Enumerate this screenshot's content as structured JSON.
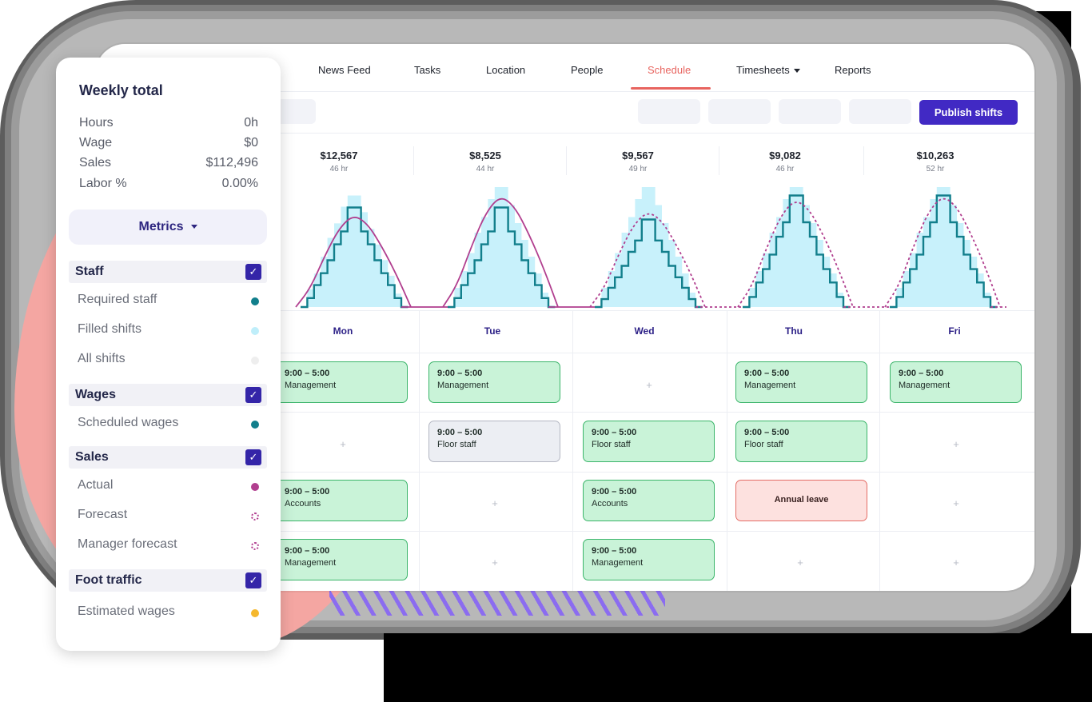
{
  "nav": {
    "items": [
      "News Feed",
      "Tasks",
      "Location",
      "People",
      "Schedule",
      "Timesheets",
      "Reports"
    ],
    "active": "Schedule"
  },
  "toolbar": {
    "publish_label": "Publish shifts"
  },
  "days": [
    {
      "amount": "$12,567",
      "hours": "46 hr",
      "name": "Mon"
    },
    {
      "amount": "$8,525",
      "hours": "44 hr",
      "name": "Tue"
    },
    {
      "amount": "$9,567",
      "hours": "49 hr",
      "name": "Wed"
    },
    {
      "amount": "$9,082",
      "hours": "46 hr",
      "name": "Thu"
    },
    {
      "amount": "$10,263",
      "hours": "52 hr",
      "name": "Fri"
    }
  ],
  "shifts": {
    "mon": [
      {
        "time": "9:00 – 5:00",
        "role": "Management"
      },
      null,
      {
        "time": "9:00 – 5:00",
        "role": "Accounts"
      },
      {
        "time": "9:00 – 5:00",
        "role": "Management"
      }
    ],
    "tue": [
      {
        "time": "9:00 – 5:00",
        "role": "Management"
      },
      {
        "time": "9:00 – 5:00",
        "role": "Floor staff"
      },
      null,
      null
    ],
    "wed": [
      null,
      {
        "time": "9:00 – 5:00",
        "role": "Floor staff"
      },
      {
        "time": "9:00 – 5:00",
        "role": "Accounts"
      },
      {
        "time": "9:00 – 5:00",
        "role": "Management"
      }
    ],
    "thu": [
      {
        "time": "9:00 – 5:00",
        "role": "Management"
      },
      {
        "time": "9:00 – 5:00",
        "role": "Floor staff"
      },
      {
        "leave": "Annual leave"
      },
      null
    ],
    "fri": [
      {
        "time": "9:00 – 5:00",
        "role": "Management"
      },
      null,
      null,
      null
    ],
    "plus_symbol": "+"
  },
  "sidebar": {
    "title": "Weekly total",
    "totals": [
      {
        "label": "Hours",
        "value": "0h"
      },
      {
        "label": "Wage",
        "value": "$0"
      },
      {
        "label": "Sales",
        "value": "$112,496"
      },
      {
        "label": "Labor %",
        "value": "0.00%"
      }
    ],
    "metrics_label": "Metrics",
    "groups": [
      {
        "label": "Staff",
        "checked": true,
        "items": [
          {
            "label": "Required staff",
            "color": "#127f8c"
          },
          {
            "label": "Filled shifts",
            "color": "#bfeefa"
          },
          {
            "label": "All shifts",
            "color": "#eeeeee"
          }
        ]
      },
      {
        "label": "Wages",
        "checked": true,
        "items": [
          {
            "label": "Scheduled wages",
            "color": "#127f8c"
          }
        ]
      },
      {
        "label": "Sales",
        "checked": true,
        "items": [
          {
            "label": "Actual",
            "color": "#b13f8f"
          },
          {
            "label": "Forecast",
            "color": "#b13f8f"
          },
          {
            "label": "Manager forecast",
            "color": "#b13f8f"
          }
        ]
      },
      {
        "label": "Foot traffic",
        "checked": true,
        "items": [
          {
            "label": "Estimated wages",
            "color": "#f5b82e"
          }
        ]
      }
    ],
    "check_glyph": "✓"
  },
  "colors": {
    "accent": "#4129c4",
    "active_nav": "#e8645f",
    "shift_green": "#c9f3d8",
    "leave_red": "#fde1df",
    "staff_line": "#127f8c",
    "sales_line": "#b13f8f",
    "filled_area": "#c8f1fb"
  },
  "chart_data": {
    "type": "area",
    "title": "",
    "xlabel": "",
    "ylabel": "",
    "categories": [
      "Mon",
      "Tue",
      "Wed",
      "Thu",
      "Fri"
    ],
    "series": [
      {
        "name": "Required staff",
        "values": [
          0.83,
          0.83,
          0.73,
          0.93,
          0.93
        ]
      },
      {
        "name": "Filled shifts",
        "values": [
          0.93,
          1.0,
          1.0,
          1.0,
          1.0
        ]
      },
      {
        "name": "Actual",
        "values": [
          0.77,
          0.93,
          null,
          null,
          null
        ]
      },
      {
        "name": "Forecast",
        "values": [
          null,
          null,
          0.8,
          0.9,
          0.93
        ]
      }
    ]
  }
}
